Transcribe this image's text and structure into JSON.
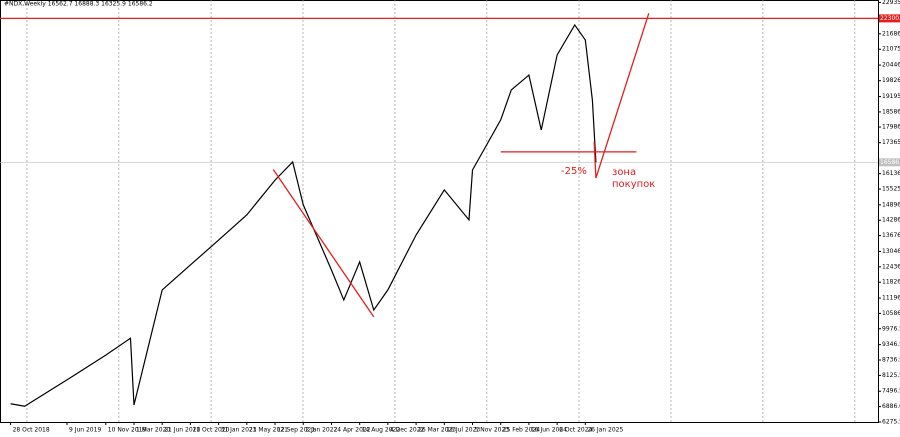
{
  "chart_data": {
    "type": "line",
    "title": "#NDX,Weekly  16562.7 16888.3 16325.9 16586.2",
    "color": "#000000",
    "x": [
      "28 Oct 2018",
      "23 Dec 2018",
      "9 Jun 2019",
      "10 Nov 2019",
      "16 Feb 2020",
      "1 Mar 2020",
      "21 Jun 2020",
      "11 Oct 2020",
      "31 Jan 2021",
      "23 May 2021",
      "12 Sep 2021",
      "21 Nov 2021",
      "2 Jan 2022",
      "24 Apr 2022",
      "12 Jun 2022",
      "14 Aug 2022",
      "9 Oct 2022",
      "4 Dec 2022",
      "26 Mar 2023",
      "16 Jul 2023",
      "22 Oct 2023",
      "5 Nov 2023",
      "25 Feb 2024",
      "7 Apr 2024",
      "16 Jun 2024",
      "4 Aug 2024",
      "6 Oct 2024",
      "15 Dec 2024",
      "26 Jan 2025",
      "23 Feb 2025",
      "9 Mar 2025"
    ],
    "values": [
      7000,
      6900,
      7950,
      8930,
      9600,
      6950,
      11520,
      12510,
      13500,
      14500,
      15880,
      16600,
      14900,
      12310,
      11120,
      12630,
      10720,
      11520,
      13700,
      15490,
      14300,
      16280,
      18270,
      19460,
      20050,
      17870,
      20850,
      22040,
      21440,
      19060,
      16586.2
    ],
    "xlim": [
      "16 Sep 2018",
      "2 Apr 2028"
    ],
    "xticks": [
      "28 Oct 2018",
      "9 Jun 2019",
      "10 Nov 2019",
      "1 Mar 2020",
      "21 Jun 2020",
      "11 Oct 2020",
      "31 Jan 2021",
      "23 May 2021",
      "12 Sep 2021",
      "2 Jan 2022",
      "24 Apr 2022",
      "14 Aug 2022",
      "4 Dec 2022",
      "26 Mar 2023",
      "16 Jul 2023",
      "5 Nov 2023",
      "25 Feb 2024",
      "16 Jun 2024",
      "6 Oct 2024",
      "26 Jan 2025"
    ],
    "ylim": [
      6275.5,
      23030
    ],
    "yticks": [
      {
        "value": 22935,
        "label": "22935.0"
      },
      {
        "value": 21686,
        "label": "21686.0"
      },
      21075.5,
      20446.5,
      {
        "value": 19826,
        "label": "19826.0"
      },
      19195.5,
      {
        "value": 18586,
        "label": "18586.0"
      },
      {
        "value": 17986,
        "label": "17986.0"
      },
      17365.5,
      {
        "value": 16136,
        "label": "16136.0"
      },
      15525.5,
      {
        "value": 14896,
        "label": "14896.0"
      },
      14286.5,
      {
        "value": 13676,
        "label": "13676.0"
      },
      13046.5,
      {
        "value": 12436,
        "label": "12436.0"
      },
      11826.5,
      {
        "value": 11196,
        "label": "11196.0"
      },
      10586.5,
      9976.5,
      9346.5,
      8736.5,
      8125.5,
      7496.5,
      {
        "value": 6886,
        "label": "6886.0"
      },
      6275.5
    ],
    "levels": [
      {
        "value": 22300,
        "label": "22300.0",
        "color": "#e41e1e"
      },
      {
        "value": 16586.2,
        "label": "16586.2",
        "color": "#c0c0c0"
      }
    ],
    "drawings": [
      {
        "color": "#e41e1e",
        "x": [
          "5 Sep 2021",
          "9 Oct 2022"
        ],
        "values": [
          16300,
          10450
        ]
      },
      {
        "color": "#e41e1e",
        "x": [
          "25 Feb 2024",
          "17 Aug 2025"
        ],
        "values": [
          17000,
          17000
        ]
      },
      {
        "color": "#e41e1e",
        "x": [
          "2 Mar 2025",
          "9 Mar 2025",
          "5 Oct 2025"
        ],
        "values": [
          17400,
          15960,
          22500
        ]
      }
    ],
    "annotations": [
      {
        "text": "-25%"
      },
      {
        "text": "зона"
      },
      {
        "text": "покупок"
      }
    ]
  }
}
